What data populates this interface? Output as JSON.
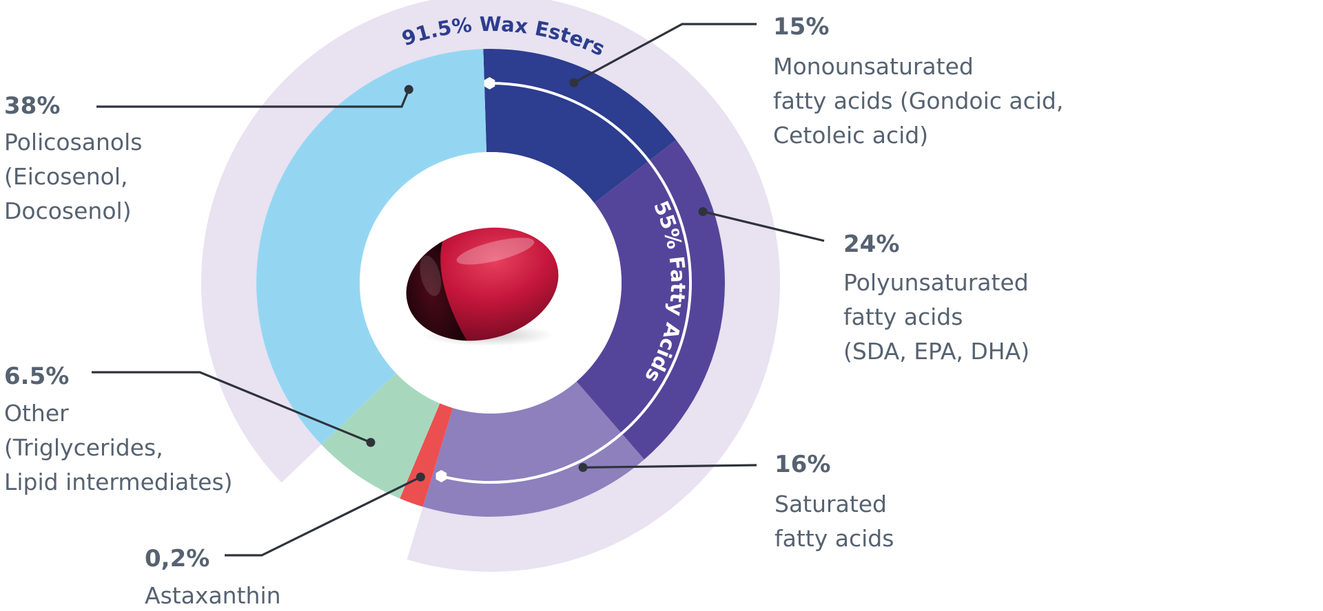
{
  "chart_data": {
    "type": "pie",
    "variant": "nested-donut",
    "center_image": "red-softgel-capsule",
    "slices": [
      {
        "label": "Policosanols (Eicosenol, Docosenol)",
        "value": 38,
        "pct": "38%",
        "lines": [
          "Policosanols",
          "(Eicosenol,",
          "Docosenol)"
        ],
        "color": "#94d6f2"
      },
      {
        "label": "Monounsaturated fatty acids (Gondoic acid, Cetoleic acid)",
        "value": 15,
        "pct": "15%",
        "lines": [
          "Monounsaturated",
          "fatty acids (Gondoic acid,",
          "Cetoleic acid)"
        ],
        "color": "#2d3d8f"
      },
      {
        "label": "Polyunsaturated fatty acids (SDA, EPA, DHA)",
        "value": 24,
        "pct": "24%",
        "lines": [
          "Polyunsaturated",
          "fatty acids",
          "(SDA, EPA, DHA)"
        ],
        "color": "#55459a"
      },
      {
        "label": "Saturated fatty acids",
        "value": 16,
        "pct": "16%",
        "lines": [
          "Saturated",
          "fatty acids"
        ],
        "color": "#8d80bd"
      },
      {
        "label": "Astaxanthin",
        "value": 0.2,
        "pct": "0,2%",
        "lines": [
          "Astaxanthin"
        ],
        "color": "#ec4f50"
      },
      {
        "label": "Other (Triglycerides, Lipid intermediates)",
        "value": 6.5,
        "pct": "6.5%",
        "lines": [
          "Other",
          "(Triglycerides,",
          "Lipid intermediates)"
        ],
        "color": "#a7d8be"
      }
    ],
    "groups": [
      {
        "label": "91.5% Wax Esters",
        "value": 91.5,
        "color": "#e8e2f1",
        "text_color": "#2d3d8f"
      },
      {
        "label": "55% Fatty Acids",
        "value": 55,
        "text_color": "#ffffff"
      }
    ]
  }
}
